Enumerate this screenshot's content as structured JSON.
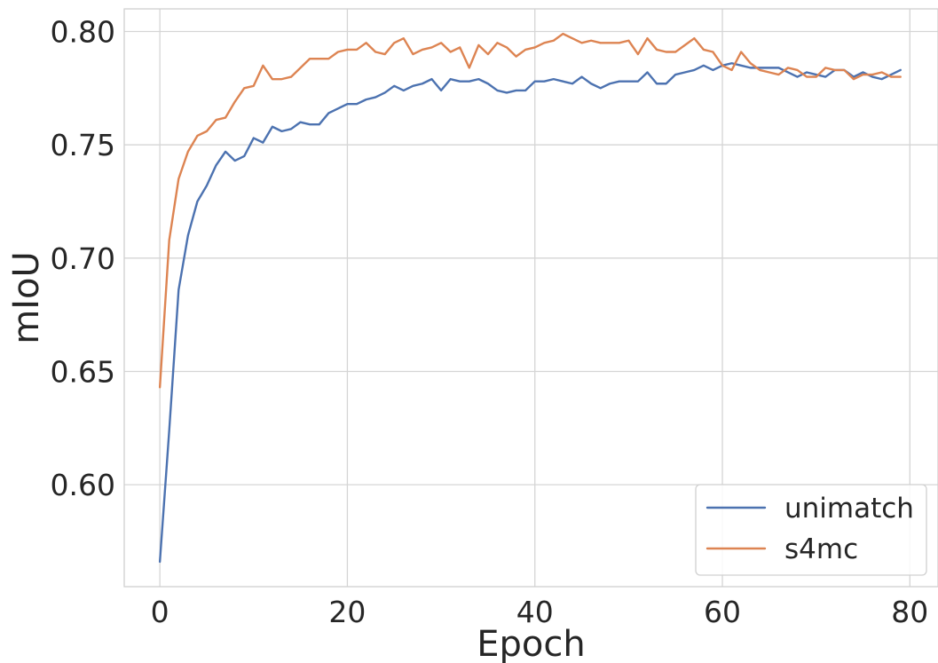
{
  "chart_data": {
    "type": "line",
    "xlabel": "Epoch",
    "ylabel": "mIoU",
    "xlim": [
      -3.8,
      83
    ],
    "ylim": [
      0.555,
      0.81
    ],
    "xticks": [
      0,
      20,
      40,
      60,
      80
    ],
    "xtick_labels": [
      "0",
      "20",
      "40",
      "60",
      "80"
    ],
    "yticks": [
      0.6,
      0.65,
      0.7,
      0.75,
      0.8
    ],
    "ytick_labels": [
      "0.60",
      "0.65",
      "0.70",
      "0.75",
      "0.80"
    ],
    "grid": true,
    "legend_position": "lower-right",
    "x": [
      0,
      1,
      2,
      3,
      4,
      5,
      6,
      7,
      8,
      9,
      10,
      11,
      12,
      13,
      14,
      15,
      16,
      17,
      18,
      19,
      20,
      21,
      22,
      23,
      24,
      25,
      26,
      27,
      28,
      29,
      30,
      31,
      32,
      33,
      34,
      35,
      36,
      37,
      38,
      39,
      40,
      41,
      42,
      43,
      44,
      45,
      46,
      47,
      48,
      49,
      50,
      51,
      52,
      53,
      54,
      55,
      56,
      57,
      58,
      59,
      60,
      61,
      62,
      63,
      64,
      65,
      66,
      67,
      68,
      69,
      70,
      71,
      72,
      73,
      74,
      75,
      76,
      77,
      78,
      79
    ],
    "series": [
      {
        "name": "unimatch",
        "color": "#4c72b0",
        "values": [
          0.566,
          0.624,
          0.686,
          0.71,
          0.725,
          0.732,
          0.741,
          0.747,
          0.743,
          0.745,
          0.753,
          0.751,
          0.758,
          0.756,
          0.757,
          0.76,
          0.759,
          0.759,
          0.764,
          0.766,
          0.768,
          0.768,
          0.77,
          0.771,
          0.773,
          0.776,
          0.774,
          0.776,
          0.777,
          0.779,
          0.774,
          0.779,
          0.778,
          0.778,
          0.779,
          0.777,
          0.774,
          0.773,
          0.774,
          0.774,
          0.778,
          0.778,
          0.779,
          0.778,
          0.777,
          0.78,
          0.777,
          0.775,
          0.777,
          0.778,
          0.778,
          0.778,
          0.782,
          0.777,
          0.777,
          0.781,
          0.782,
          0.783,
          0.785,
          0.783,
          0.785,
          0.786,
          0.785,
          0.784,
          0.784,
          0.784,
          0.784,
          0.782,
          0.78,
          0.782,
          0.781,
          0.78,
          0.783,
          0.783,
          0.78,
          0.782,
          0.78,
          0.779,
          0.781,
          0.783
        ]
      },
      {
        "name": "s4mc",
        "color": "#dd8452",
        "values": [
          0.643,
          0.708,
          0.735,
          0.747,
          0.754,
          0.756,
          0.761,
          0.762,
          0.769,
          0.775,
          0.776,
          0.785,
          0.779,
          0.779,
          0.78,
          0.784,
          0.788,
          0.788,
          0.788,
          0.791,
          0.792,
          0.792,
          0.795,
          0.791,
          0.79,
          0.795,
          0.797,
          0.79,
          0.792,
          0.793,
          0.795,
          0.791,
          0.793,
          0.784,
          0.794,
          0.79,
          0.795,
          0.793,
          0.789,
          0.792,
          0.793,
          0.795,
          0.796,
          0.799,
          0.797,
          0.795,
          0.796,
          0.795,
          0.795,
          0.795,
          0.796,
          0.79,
          0.797,
          0.792,
          0.791,
          0.791,
          0.794,
          0.797,
          0.792,
          0.791,
          0.785,
          0.783,
          0.791,
          0.786,
          0.783,
          0.782,
          0.781,
          0.784,
          0.783,
          0.78,
          0.78,
          0.784,
          0.783,
          0.783,
          0.779,
          0.781,
          0.781,
          0.782,
          0.78,
          0.78
        ]
      }
    ]
  }
}
